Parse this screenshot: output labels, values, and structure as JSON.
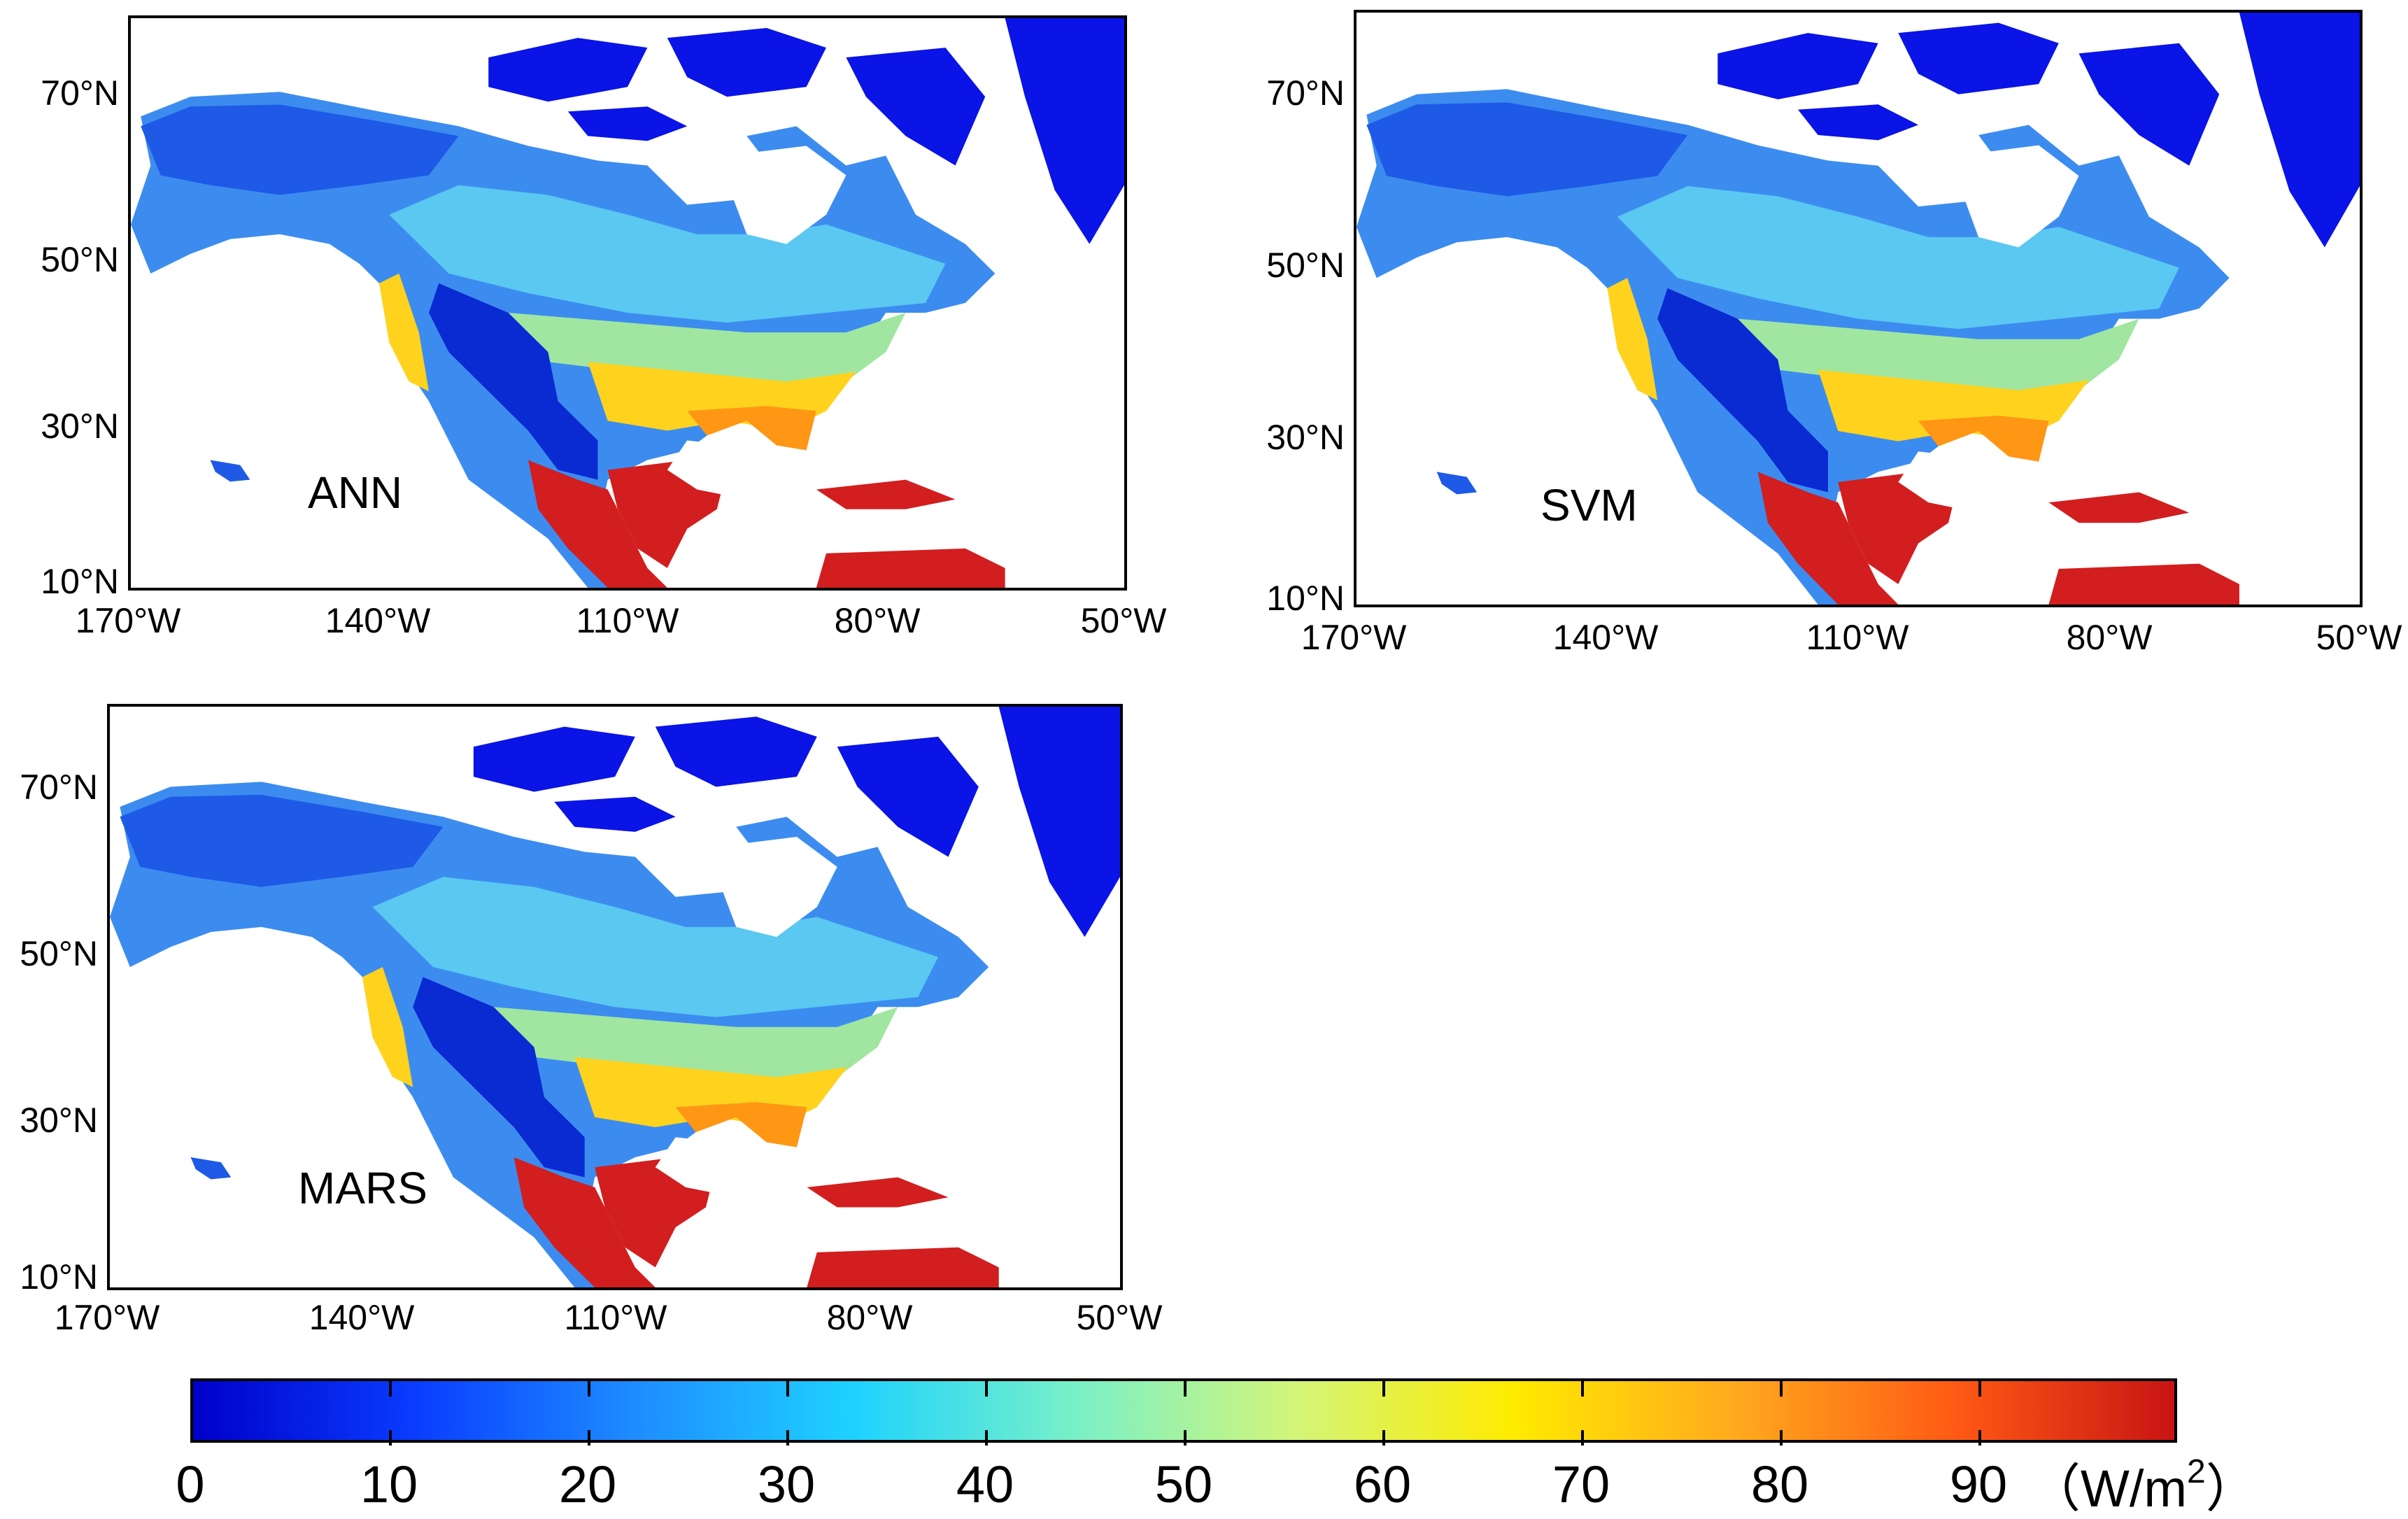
{
  "panels": [
    {
      "label": "ANN"
    },
    {
      "label": "SVM"
    },
    {
      "label": "MARS"
    }
  ],
  "axes": {
    "lat_ticks": [
      "70°N",
      "50°N",
      "30°N",
      "10°N"
    ],
    "lon_ticks": [
      "170°W",
      "140°W",
      "110°W",
      "80°W",
      "50°W"
    ]
  },
  "colorbar": {
    "ticks": [
      "0",
      "10",
      "20",
      "30",
      "40",
      "50",
      "60",
      "70",
      "80",
      "90"
    ],
    "unit_prefix": "（W/m",
    "unit_sup": "2",
    "unit_suffix": "）",
    "colors": [
      "#0000c8",
      "#0a3cff",
      "#1e8cff",
      "#1ed2ff",
      "#78f0c8",
      "#d2f57a",
      "#ffeb00",
      "#ffaa1e",
      "#ff5a14",
      "#c81414"
    ]
  },
  "palette": {
    "ocean": "#ffffff",
    "ice": "#0a14e6",
    "cold": "#1e5ae6",
    "boreal": "#3c8cf0",
    "mid": "#5ac8f0",
    "warm": "#a0e6a0",
    "hot": "#ffd21e",
    "hotter": "#ff9614",
    "tropics": "#d21e1e",
    "rockies": "#0a2ad2"
  }
}
